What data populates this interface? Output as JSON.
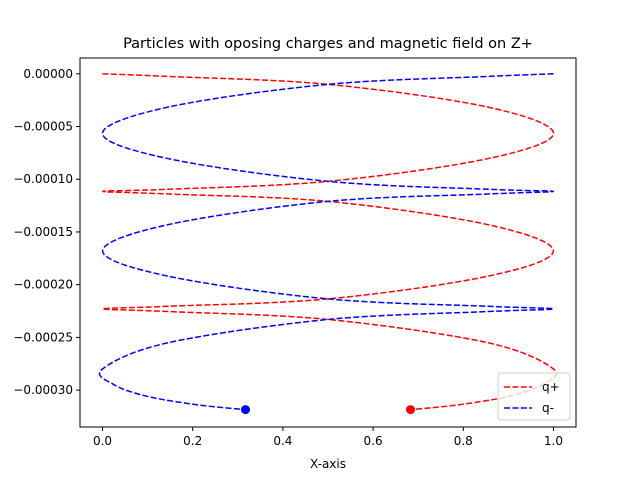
{
  "chart_data": {
    "type": "line",
    "title": "Particles with oposing charges and magnetic field on Z+",
    "xlabel": "X-axis",
    "ylabel": "",
    "xlim": [
      -0.05,
      1.05
    ],
    "ylim": [
      -0.000335,
      1.5e-05
    ],
    "x_ticks": [
      0.0,
      0.2,
      0.4,
      0.6,
      0.8,
      1.0
    ],
    "x_tick_labels": [
      "0.0",
      "0.2",
      "0.4",
      "0.6",
      "0.8",
      "1.0"
    ],
    "y_ticks": [
      0.0,
      -5e-05,
      -0.0001,
      -0.00015,
      -0.0002,
      -0.00025,
      -0.0003
    ],
    "y_tick_labels": [
      "0.00000",
      "−0.00005",
      "−0.00010",
      "−0.00015",
      "−0.00020",
      "−0.00025",
      "−0.00030"
    ],
    "legend_position": "bottom-right",
    "grid": false,
    "series": [
      {
        "name": "q+",
        "color": "#ff0000",
        "line_style": "dashed",
        "x": [
          0.0,
          0.146,
          0.5,
          0.854,
          1.0,
          0.854,
          0.5,
          0.146,
          0.0,
          0.146,
          0.5,
          0.854,
          1.0,
          0.854,
          0.5,
          0.146,
          0.0,
          0.146,
          0.5,
          0.854,
          1.0,
          0.974,
          0.9,
          0.789,
          0.683
        ],
        "y": [
          0.0,
          -2.5e-06,
          -1e-05,
          -3.15e-05,
          -5.65e-05,
          -8.05e-05,
          -0.000102,
          -0.0001095,
          -0.0001115,
          -0.000114,
          -0.000121,
          -0.000143,
          -0.000168,
          -0.000192,
          -0.0002135,
          -0.0002205,
          -0.000223,
          -0.0002255,
          -0.000233,
          -0.000255,
          -0.00028,
          -0.000295,
          -0.000306,
          -0.000314,
          -0.0003185
        ],
        "end_marker": {
          "x": 0.683,
          "y": -0.0003185
        }
      },
      {
        "name": "q-",
        "color": "#0000ff",
        "line_style": "dashed",
        "x": [
          1.0,
          0.854,
          0.5,
          0.146,
          0.0,
          0.146,
          0.5,
          0.854,
          1.0,
          0.854,
          0.5,
          0.146,
          0.0,
          0.146,
          0.5,
          0.854,
          1.0,
          0.854,
          0.5,
          0.146,
          0.0,
          0.026,
          0.1,
          0.211,
          0.317
        ],
        "y": [
          0.0,
          -2.5e-06,
          -1e-05,
          -3.15e-05,
          -5.65e-05,
          -8.05e-05,
          -0.000102,
          -0.0001095,
          -0.0001115,
          -0.000114,
          -0.000121,
          -0.000143,
          -0.000168,
          -0.000192,
          -0.0002135,
          -0.0002205,
          -0.000223,
          -0.0002255,
          -0.000233,
          -0.000255,
          -0.00028,
          -0.000295,
          -0.000306,
          -0.000314,
          -0.0003185
        ],
        "end_marker": {
          "x": 0.317,
          "y": -0.0003185
        }
      }
    ]
  }
}
